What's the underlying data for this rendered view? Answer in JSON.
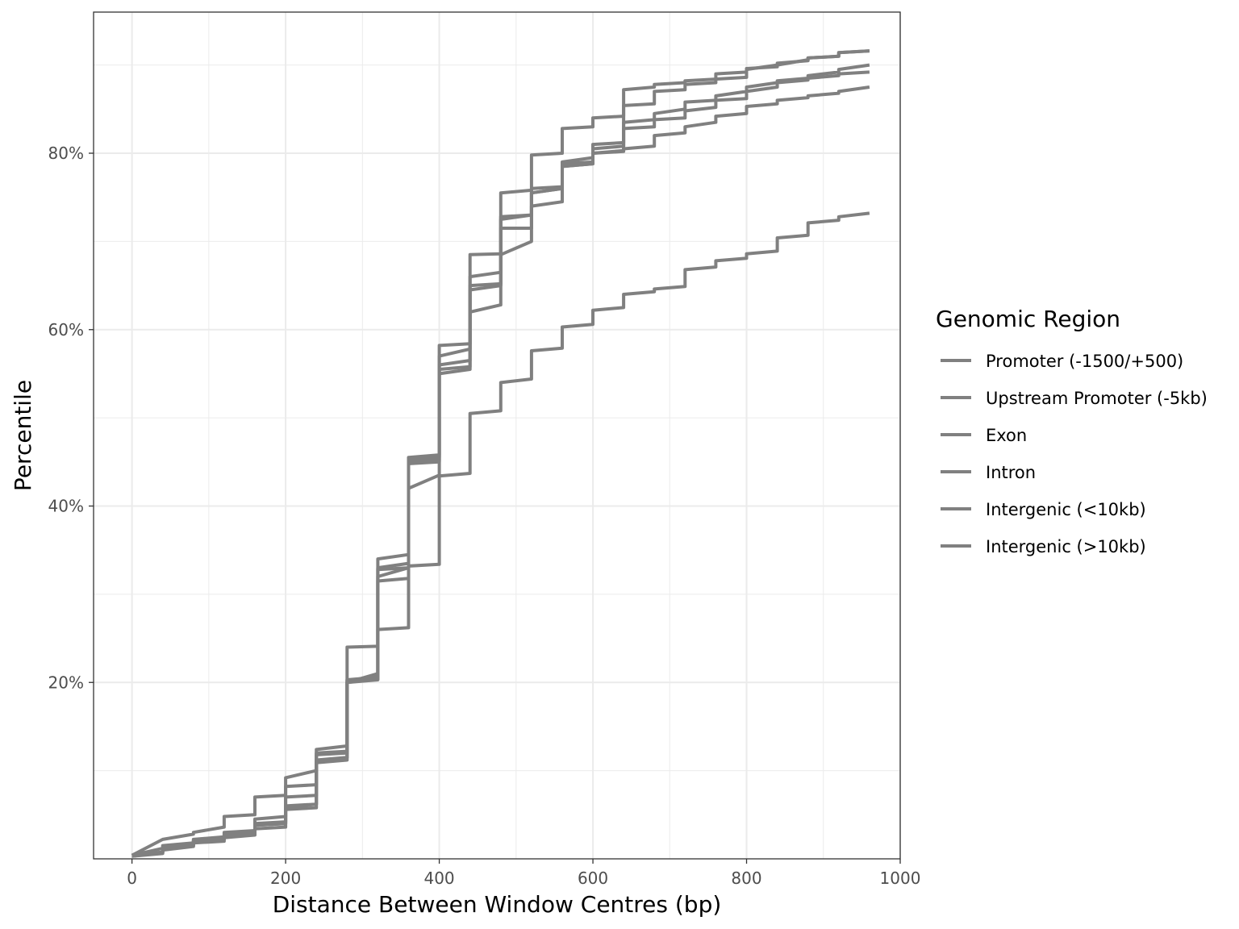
{
  "chart_data": {
    "type": "line",
    "title": "",
    "xlabel": "Distance Between Window Centres (bp)",
    "ylabel": "Percentile",
    "xlim": [
      -50,
      1000
    ],
    "ylim": [
      0,
      96
    ],
    "x_ticks": [
      0,
      200,
      400,
      600,
      800,
      1000
    ],
    "x_tick_labels": [
      "0",
      "200",
      "400",
      "600",
      "800",
      "1000"
    ],
    "x_minor_ticks": [
      100,
      300,
      500,
      700,
      900
    ],
    "y_ticks": [
      20,
      40,
      60,
      80
    ],
    "y_tick_labels": [
      "20%",
      "40%",
      "60%",
      "80%"
    ],
    "y_minor_ticks": [
      10,
      30,
      50,
      70,
      90
    ],
    "grid": true,
    "line_color": "#808080",
    "legend": {
      "title": "Genomic Region",
      "position": "right"
    },
    "series": [
      {
        "name": "Promoter (-1500/+500)",
        "x": [
          0,
          40,
          40,
          80,
          80,
          120,
          120,
          160,
          160,
          200,
          200,
          240,
          240,
          280,
          280,
          320,
          320,
          360,
          360,
          400,
          400,
          440,
          440,
          480,
          480,
          520,
          520,
          560,
          560,
          600,
          600,
          640,
          640,
          680,
          680,
          720,
          720,
          760,
          760,
          800,
          800,
          840,
          840,
          880,
          880,
          920,
          920,
          960
        ],
        "y": [
          0.3,
          0.8,
          1.2,
          1.6,
          2.0,
          2.2,
          2.6,
          2.8,
          3.8,
          4.0,
          6.0,
          6.2,
          11.0,
          11.5,
          20.3,
          20.6,
          34.0,
          34.5,
          44.8,
          45.0,
          57.0,
          57.8,
          66.0,
          66.5,
          72.5,
          73.0,
          75.5,
          76.0,
          78.8,
          79.0,
          80.5,
          80.8,
          83.5,
          83.8,
          84.5,
          85.0,
          85.8,
          86.0,
          86.5,
          87.0,
          87.5,
          88.0,
          88.2,
          88.5,
          88.8,
          89.2,
          89.5,
          90.0
        ]
      },
      {
        "name": "Upstream Promoter (-5kb)",
        "x": [
          0,
          40,
          40,
          80,
          80,
          120,
          120,
          160,
          160,
          200,
          200,
          240,
          240,
          280,
          280,
          320,
          320,
          360,
          360,
          400,
          400,
          440,
          440,
          480,
          480,
          520,
          520,
          560,
          560,
          600,
          600,
          640,
          640,
          680,
          680,
          720,
          720,
          760,
          760,
          800,
          800,
          840,
          840,
          880,
          880,
          920,
          920,
          960
        ],
        "y": [
          0.3,
          0.7,
          1.0,
          1.4,
          1.8,
          2.0,
          2.4,
          2.7,
          3.4,
          3.6,
          5.6,
          5.8,
          10.9,
          11.2,
          20.0,
          20.4,
          31.5,
          31.8,
          42.0,
          43.5,
          55.0,
          55.5,
          64.5,
          65.0,
          71.5,
          71.5,
          74.0,
          74.5,
          79.0,
          79.5,
          80.0,
          80.3,
          80.5,
          80.8,
          82.0,
          82.3,
          83.0,
          83.5,
          84.2,
          84.5,
          85.3,
          85.6,
          86.0,
          86.3,
          86.5,
          86.8,
          87.0,
          87.5
        ]
      },
      {
        "name": "Exon",
        "x": [
          0,
          40,
          40,
          80,
          80,
          120,
          120,
          160,
          160,
          200,
          200,
          240,
          240,
          280,
          280,
          320,
          320,
          360,
          360,
          400,
          400,
          440,
          440,
          480,
          480,
          520,
          520,
          560,
          560,
          600,
          600,
          640,
          640,
          680,
          680,
          720,
          720,
          760,
          760,
          800,
          800,
          840,
          840,
          880,
          880,
          920,
          920,
          960
        ],
        "y": [
          0.4,
          2.2,
          2.2,
          2.8,
          3.0,
          3.6,
          4.8,
          5.0,
          7.0,
          7.2,
          9.2,
          10.0,
          12.4,
          12.8,
          24.0,
          24.1,
          33.0,
          33.5,
          45.5,
          45.8,
          58.2,
          58.4,
          68.5,
          68.6,
          75.5,
          75.8,
          79.8,
          80.0,
          82.8,
          83.0,
          84.0,
          84.2,
          87.2,
          87.5,
          87.8,
          88.0,
          88.2,
          88.4,
          89.0,
          89.2,
          89.5,
          90.0,
          90.2,
          90.5,
          90.8,
          91.0,
          91.4,
          91.6
        ]
      },
      {
        "name": "Intron",
        "x": [
          0,
          40,
          40,
          80,
          80,
          120,
          120,
          160,
          160,
          200,
          200,
          240,
          240,
          280,
          280,
          320,
          320,
          360,
          360,
          400,
          400,
          440,
          440,
          480,
          480,
          520,
          520,
          560,
          560,
          600,
          600,
          640,
          640,
          680,
          680,
          720,
          720,
          760,
          760,
          800,
          800,
          840,
          840,
          880,
          880,
          920,
          920,
          960
        ],
        "y": [
          0.3,
          0.6,
          1.2,
          1.5,
          2.0,
          2.3,
          2.8,
          3.0,
          4.5,
          4.8,
          7.0,
          7.2,
          11.8,
          12.0,
          20.0,
          21.0,
          32.8,
          33.0,
          45.2,
          45.5,
          56.0,
          56.5,
          65.0,
          65.2,
          72.8,
          73.0,
          76.0,
          76.2,
          78.5,
          78.8,
          81.0,
          81.2,
          82.8,
          83.0,
          83.8,
          84.0,
          84.8,
          85.2,
          86.0,
          86.2,
          87.0,
          87.5,
          88.0,
          88.3,
          88.5,
          88.8,
          89.0,
          89.2
        ]
      },
      {
        "name": "Intergenic (<10kb)",
        "x": [
          0,
          40,
          40,
          80,
          80,
          120,
          120,
          160,
          160,
          200,
          200,
          240,
          240,
          280,
          280,
          320,
          320,
          360,
          360,
          400,
          400,
          440,
          440,
          480,
          480,
          520,
          520,
          560,
          560,
          600,
          600,
          640,
          640,
          680,
          680,
          720,
          720,
          760,
          760,
          800,
          800,
          840,
          840,
          880,
          880,
          920,
          920,
          960
        ],
        "y": [
          0.3,
          0.7,
          1.2,
          1.5,
          2.0,
          2.2,
          2.6,
          2.8,
          3.8,
          4.0,
          8.2,
          8.4,
          12.0,
          12.2,
          20.2,
          20.4,
          26.0,
          26.2,
          45.0,
          45.2,
          55.5,
          55.8,
          62.0,
          62.8,
          68.5,
          70.0,
          75.5,
          76.0,
          78.5,
          78.8,
          80.0,
          80.2,
          85.4,
          85.6,
          87.0,
          87.2,
          87.8,
          88.0,
          88.4,
          88.6,
          89.6,
          89.8,
          90.0,
          90.6,
          90.8,
          91.0,
          91.4,
          91.6
        ]
      },
      {
        "name": "Intergenic (>10kb)",
        "x": [
          0,
          40,
          40,
          80,
          80,
          120,
          120,
          160,
          160,
          200,
          200,
          240,
          240,
          280,
          280,
          320,
          320,
          360,
          360,
          400,
          400,
          440,
          440,
          480,
          480,
          520,
          520,
          560,
          560,
          600,
          600,
          640,
          640,
          680,
          680,
          720,
          720,
          760,
          760,
          800,
          800,
          840,
          840,
          880,
          880,
          920,
          920,
          960
        ],
        "y": [
          0.4,
          1.2,
          1.5,
          1.8,
          2.2,
          2.5,
          3.0,
          3.2,
          4.0,
          4.2,
          5.8,
          6.2,
          11.2,
          11.5,
          20.0,
          20.3,
          32.0,
          33.0,
          33.2,
          33.4,
          43.4,
          43.7,
          50.5,
          50.8,
          54.0,
          54.4,
          57.6,
          57.9,
          60.3,
          60.6,
          62.2,
          62.5,
          64.0,
          64.3,
          64.6,
          64.9,
          66.8,
          67.1,
          67.8,
          68.1,
          68.6,
          68.9,
          70.4,
          70.7,
          72.1,
          72.4,
          72.8,
          73.2
        ]
      }
    ]
  }
}
